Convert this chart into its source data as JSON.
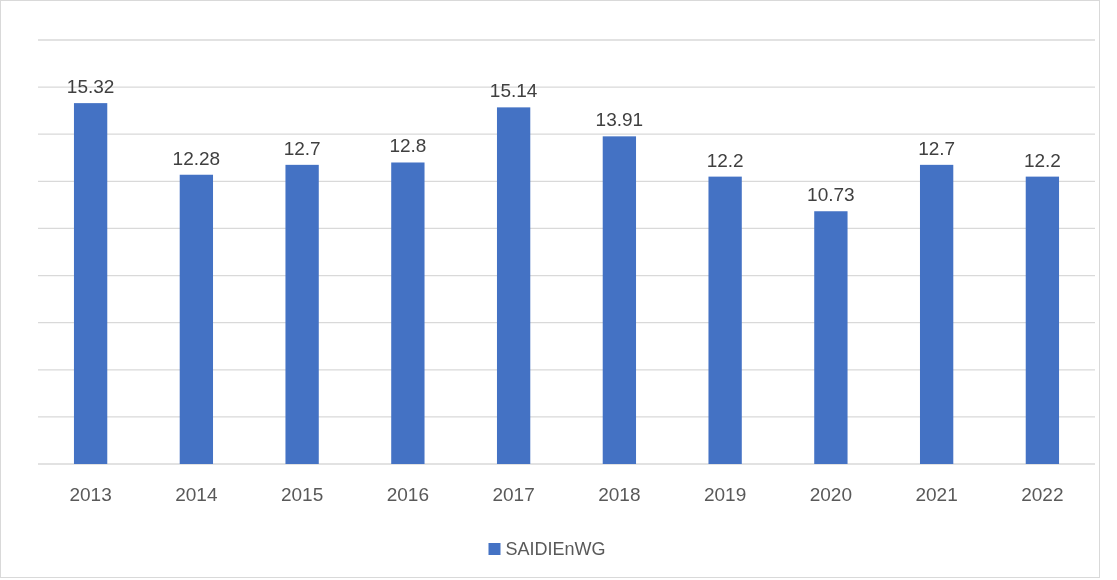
{
  "chart_data": {
    "type": "bar",
    "categories": [
      "2013",
      "2014",
      "2015",
      "2016",
      "2017",
      "2018",
      "2019",
      "2020",
      "2021",
      "2022"
    ],
    "series": [
      {
        "name": "SAIDIEnWG",
        "color": "#4472c4",
        "values": [
          15.32,
          12.28,
          12.7,
          12.8,
          15.14,
          13.91,
          12.2,
          10.73,
          12.7,
          12.2
        ]
      }
    ],
    "ylim": [
      0,
      18
    ],
    "yticks": [
      {
        "value": 0,
        "label": null
      },
      {
        "value": 2,
        "label": null
      },
      {
        "value": 4,
        "label": null
      },
      {
        "value": 6,
        "label": null
      },
      {
        "value": 8,
        "label": null
      },
      {
        "value": 10,
        "label": null
      },
      {
        "value": 12,
        "label": null
      },
      {
        "value": 14,
        "label": null
      },
      {
        "value": 16,
        "label": null
      },
      {
        "value": 18,
        "label": null
      }
    ],
    "tick_labels": "x",
    "grid": "y",
    "legend": "bottom",
    "data_labels": true
  }
}
